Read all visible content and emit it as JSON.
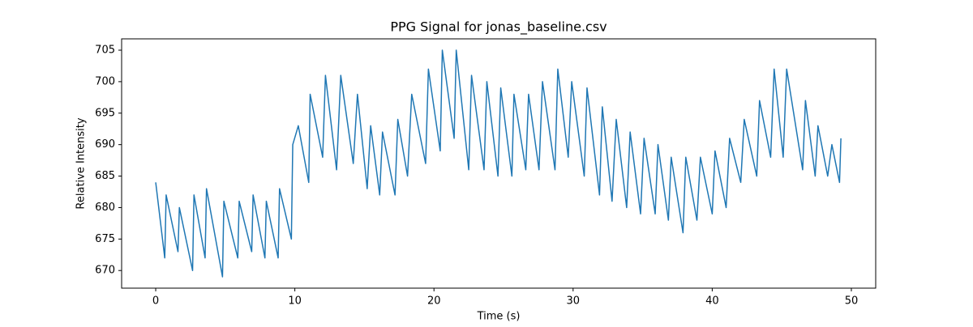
{
  "chart_data": {
    "type": "line",
    "title": "PPG Signal for jonas_baseline.csv",
    "xlabel": "Time (s)",
    "ylabel": "Relative Intensity",
    "x": [
      0,
      0.65,
      0.75,
      1.6,
      1.7,
      2.65,
      2.75,
      3.55,
      3.65,
      4.8,
      4.9,
      5.9,
      6.0,
      6.9,
      7.0,
      7.85,
      7.95,
      8.8,
      8.9,
      9.75,
      9.85,
      10.25,
      11.0,
      11.1,
      12.0,
      12.2,
      13.0,
      13.3,
      14.2,
      14.5,
      15.2,
      15.45,
      16.1,
      16.3,
      17.2,
      17.4,
      18.1,
      18.4,
      19.4,
      19.6,
      20.45,
      20.6,
      21.45,
      21.6,
      22.5,
      22.7,
      23.6,
      23.8,
      24.6,
      24.8,
      25.6,
      25.75,
      26.6,
      26.8,
      27.55,
      27.8,
      28.7,
      28.9,
      29.65,
      29.9,
      30.8,
      31.0,
      31.9,
      32.1,
      32.8,
      33.1,
      33.85,
      34.1,
      34.85,
      35.1,
      35.9,
      36.1,
      36.85,
      37.05,
      37.9,
      38.1,
      38.9,
      39.15,
      40.0,
      40.2,
      41.0,
      41.25,
      42.05,
      42.3,
      43.2,
      43.4,
      44.2,
      44.45,
      45.1,
      45.35,
      46.5,
      46.7,
      47.4,
      47.6,
      48.3,
      48.6,
      49.15,
      49.25
    ],
    "series": [
      {
        "name": "PPG",
        "color": "#1f77b4",
        "values": [
          684,
          672,
          682,
          673,
          680,
          670,
          682,
          672,
          683,
          669,
          681,
          672,
          681,
          673,
          682,
          672,
          681,
          672,
          683,
          675,
          690,
          693,
          684,
          698,
          688,
          701,
          686,
          701,
          687,
          698,
          683,
          693,
          682,
          692,
          682,
          694,
          685,
          698,
          687,
          702,
          689,
          705,
          691,
          705,
          686,
          701,
          686,
          700,
          685,
          699,
          685,
          698,
          686,
          698,
          686,
          700,
          686,
          702,
          688,
          700,
          685,
          699,
          682,
          696,
          681,
          694,
          680,
          692,
          679,
          691,
          679,
          690,
          678,
          688,
          676,
          688,
          678,
          688,
          679,
          689,
          680,
          691,
          684,
          694,
          685,
          697,
          688,
          702,
          688,
          702,
          686,
          697,
          685,
          693,
          685,
          690,
          684,
          691
        ]
      }
    ],
    "xlim": [
      -2.45,
      51.75
    ],
    "ylim": [
      667.2,
      706.8
    ],
    "xticks": [
      0,
      10,
      20,
      30,
      40,
      50
    ],
    "yticks": [
      670,
      675,
      680,
      685,
      690,
      695,
      700,
      705
    ],
    "grid": false
  }
}
